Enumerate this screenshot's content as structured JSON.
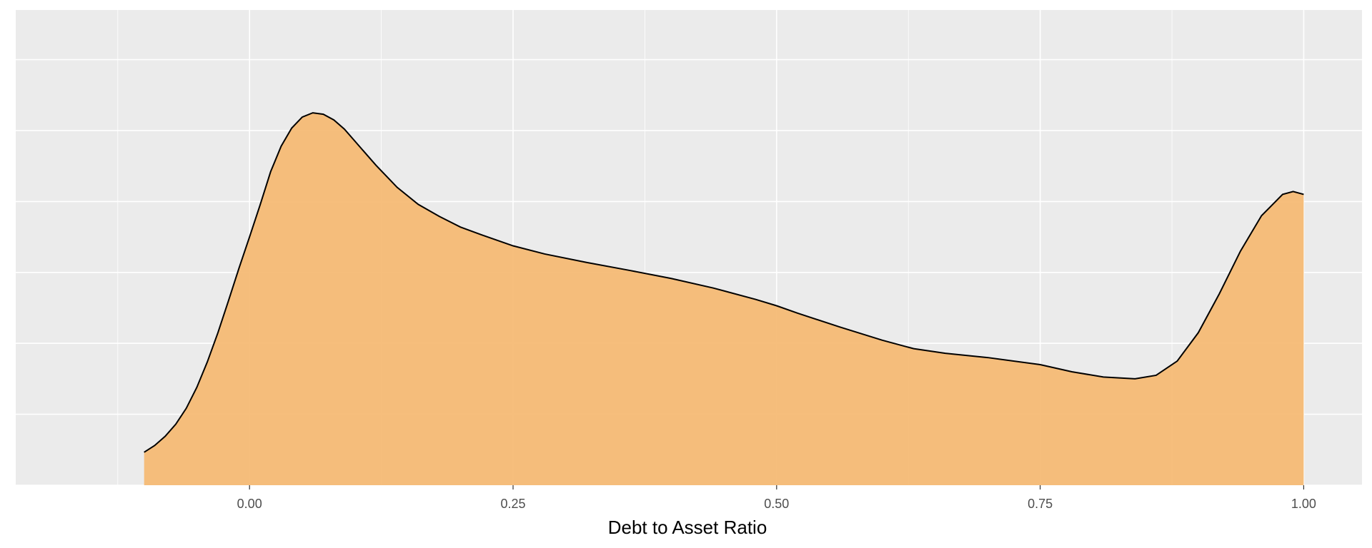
{
  "chart_data": {
    "type": "area",
    "title": "",
    "xlabel": "Debt to Asset Ratio",
    "ylabel": "",
    "xlim": [
      -0.2218,
      1.0553
    ],
    "ylim": [
      0.0,
      1.34
    ],
    "x_ticks": [
      {
        "value": 0.0,
        "label": "0.00"
      },
      {
        "value": 0.25,
        "label": "0.25"
      },
      {
        "value": 0.5,
        "label": "0.50"
      },
      {
        "value": 0.75,
        "label": "0.75"
      },
      {
        "value": 1.0,
        "label": "1.00"
      }
    ],
    "y_gridlines": [
      0.0,
      0.2,
      0.4,
      0.6,
      0.8,
      1.0,
      1.2
    ],
    "y_tick_labels_shown": false,
    "grid": true,
    "background": "#ebebeb",
    "fill_color": "#f5b971",
    "line_color": "#000000",
    "series": [
      {
        "points": [
          [
            -0.1,
            0.093
          ],
          [
            -0.09,
            0.112
          ],
          [
            -0.08,
            0.138
          ],
          [
            -0.07,
            0.172
          ],
          [
            -0.06,
            0.217
          ],
          [
            -0.05,
            0.276
          ],
          [
            -0.04,
            0.348
          ],
          [
            -0.03,
            0.43
          ],
          [
            -0.02,
            0.52
          ],
          [
            -0.01,
            0.612
          ],
          [
            0.0,
            0.7
          ],
          [
            0.01,
            0.79
          ],
          [
            0.02,
            0.884
          ],
          [
            0.03,
            0.956
          ],
          [
            0.04,
            1.007
          ],
          [
            0.05,
            1.038
          ],
          [
            0.06,
            1.05
          ],
          [
            0.07,
            1.046
          ],
          [
            0.08,
            1.03
          ],
          [
            0.09,
            1.004
          ],
          [
            0.1,
            0.97
          ],
          [
            0.12,
            0.902
          ],
          [
            0.14,
            0.84
          ],
          [
            0.16,
            0.792
          ],
          [
            0.18,
            0.758
          ],
          [
            0.2,
            0.728
          ],
          [
            0.22,
            0.706
          ],
          [
            0.25,
            0.675
          ],
          [
            0.28,
            0.652
          ],
          [
            0.32,
            0.628
          ],
          [
            0.36,
            0.606
          ],
          [
            0.4,
            0.583
          ],
          [
            0.44,
            0.556
          ],
          [
            0.48,
            0.524
          ],
          [
            0.5,
            0.506
          ],
          [
            0.52,
            0.485
          ],
          [
            0.56,
            0.446
          ],
          [
            0.6,
            0.409
          ],
          [
            0.63,
            0.385
          ],
          [
            0.66,
            0.372
          ],
          [
            0.7,
            0.36
          ],
          [
            0.75,
            0.34
          ],
          [
            0.78,
            0.32
          ],
          [
            0.81,
            0.305
          ],
          [
            0.84,
            0.3
          ],
          [
            0.86,
            0.31
          ],
          [
            0.88,
            0.35
          ],
          [
            0.9,
            0.43
          ],
          [
            0.92,
            0.54
          ],
          [
            0.94,
            0.66
          ],
          [
            0.96,
            0.76
          ],
          [
            0.98,
            0.82
          ],
          [
            0.99,
            0.828
          ],
          [
            1.0,
            0.82
          ]
        ]
      }
    ]
  }
}
